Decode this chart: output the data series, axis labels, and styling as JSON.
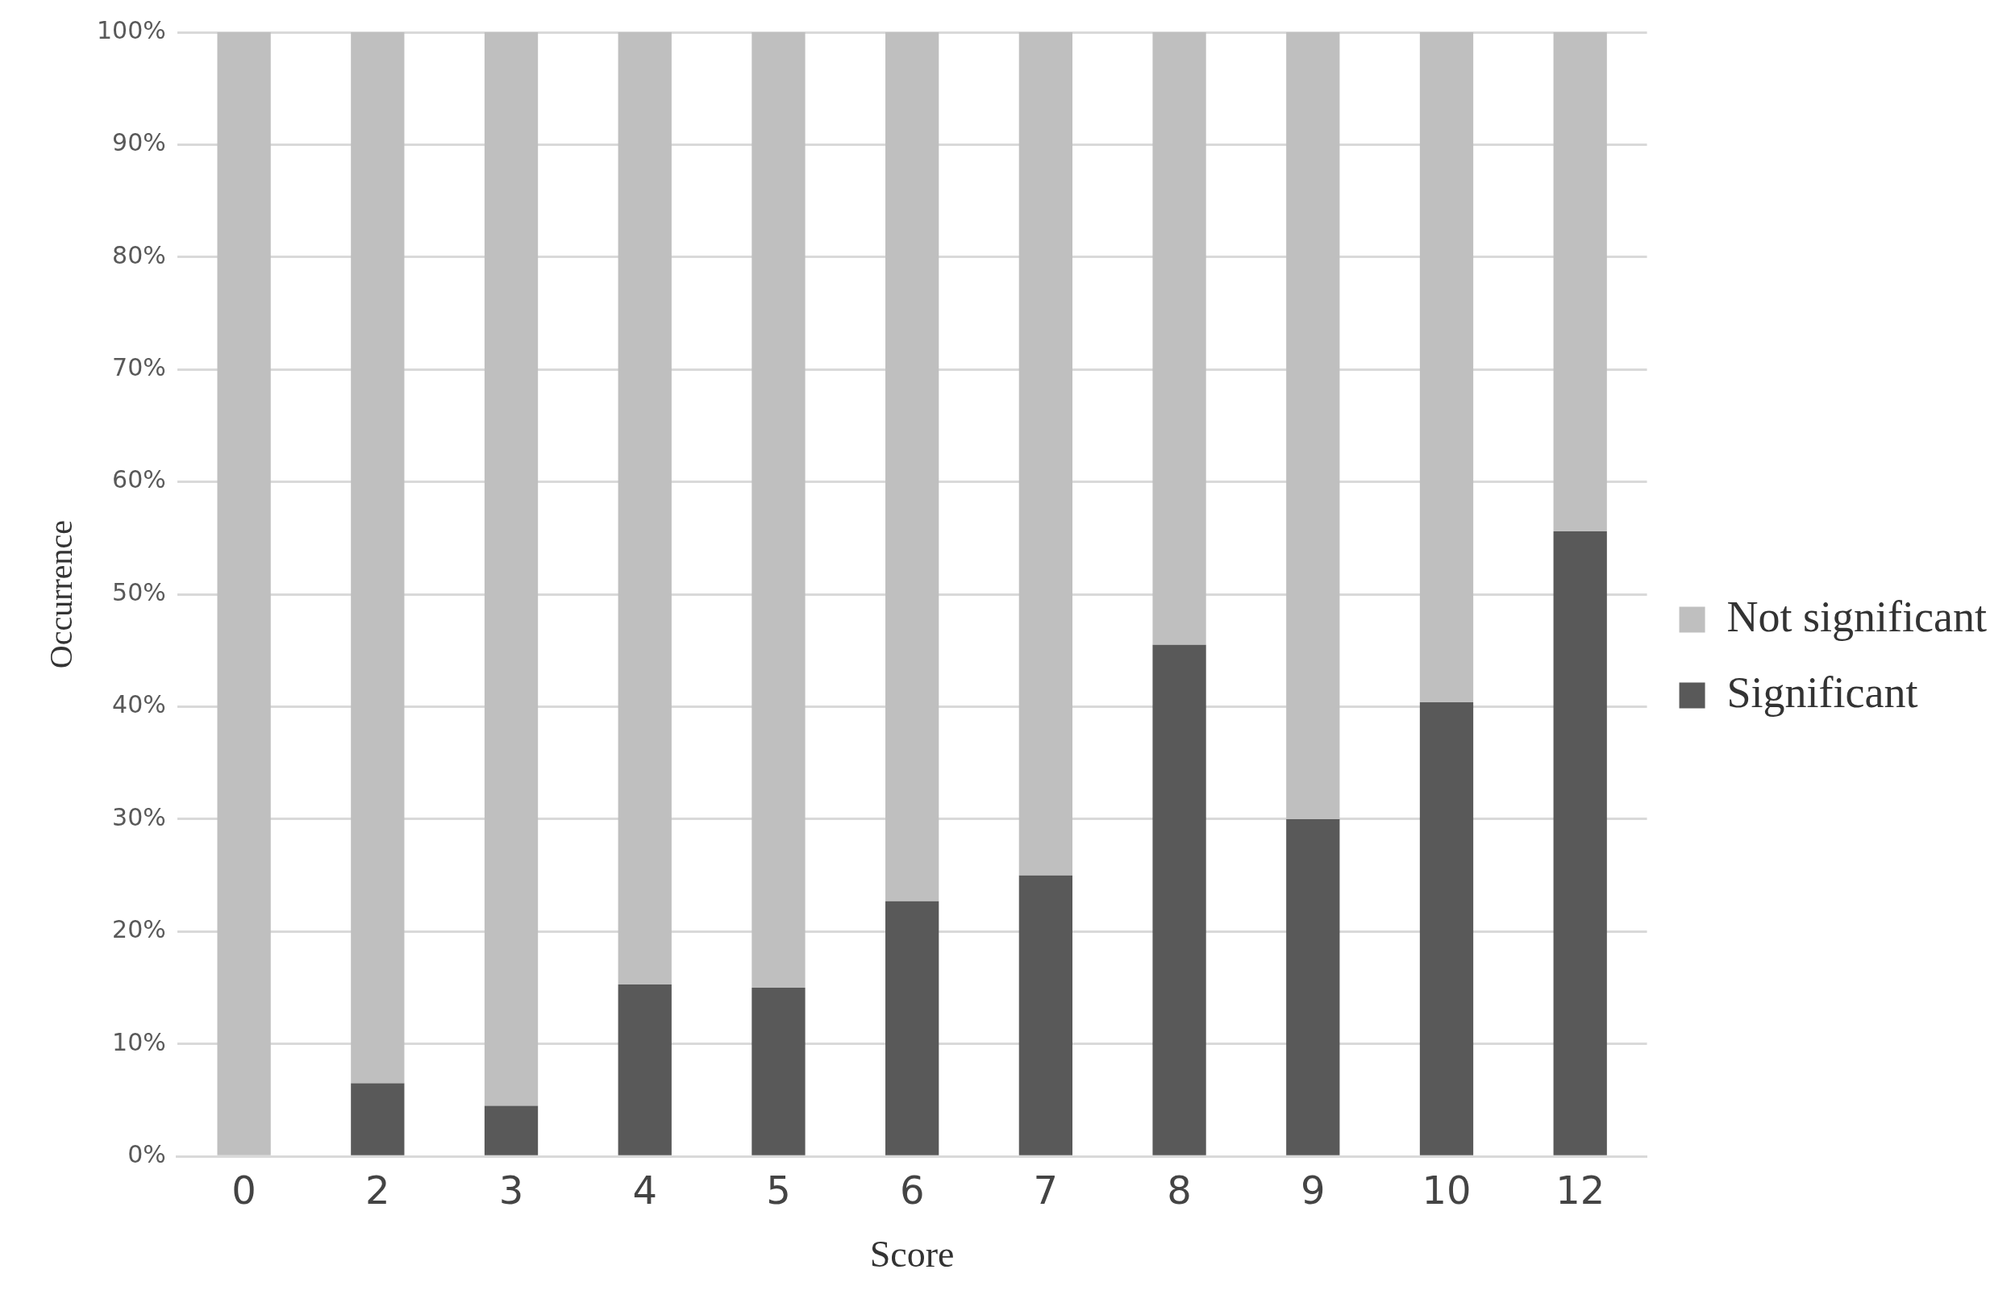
{
  "chart_data": {
    "type": "bar",
    "stacked": true,
    "xlabel": "Score",
    "ylabel": "Occurrence",
    "categories": [
      "0",
      "2",
      "3",
      "4",
      "5",
      "6",
      "7",
      "8",
      "9",
      "10",
      "12"
    ],
    "series": [
      {
        "name": "Significant",
        "color": "#595959",
        "values": [
          0,
          6.5,
          4.5,
          15.3,
          15,
          22.7,
          25,
          45.5,
          30,
          40.4,
          55.6
        ]
      },
      {
        "name": "Not significant",
        "color": "#bfbfbf",
        "values": [
          100,
          93.5,
          95.5,
          84.7,
          85,
          77.3,
          75,
          54.5,
          70,
          59.6,
          44.4
        ]
      }
    ],
    "ylim": [
      0,
      100
    ],
    "yticks": [
      {
        "value": 0,
        "label": "0%"
      },
      {
        "value": 10,
        "label": "10%"
      },
      {
        "value": 20,
        "label": "20%"
      },
      {
        "value": 30,
        "label": "30%"
      },
      {
        "value": 40,
        "label": "40%"
      },
      {
        "value": 50,
        "label": "50%"
      },
      {
        "value": 60,
        "label": "60%"
      },
      {
        "value": 70,
        "label": "70%"
      },
      {
        "value": 80,
        "label": "80%"
      },
      {
        "value": 90,
        "label": "90%"
      },
      {
        "value": 100,
        "label": "100%"
      }
    ],
    "grid": "y",
    "legend": "right"
  }
}
